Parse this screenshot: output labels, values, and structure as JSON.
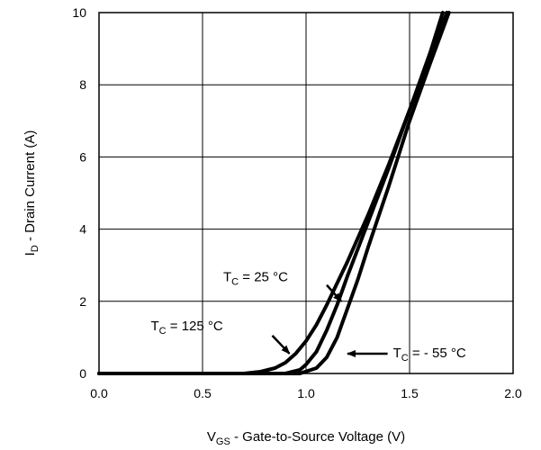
{
  "chart_data": {
    "type": "line",
    "title": "",
    "xlabel": {
      "main": "V",
      "sub": "GS",
      "rest": " - Gate-to-Source Voltage (V)"
    },
    "ylabel": {
      "main": "I",
      "sub": "D",
      "rest": " - Drain Current (A)"
    },
    "xlim": [
      0,
      2.0
    ],
    "ylim": [
      0,
      10
    ],
    "x_ticks": [
      "0.0",
      "0.5",
      "1.0",
      "1.5",
      "2.0"
    ],
    "y_ticks": [
      "0",
      "2",
      "4",
      "6",
      "8",
      "10"
    ],
    "grid": true,
    "series": [
      {
        "name": {
          "main": "T",
          "sub": "C",
          "rest": " = 125 °C"
        },
        "x": [
          0.0,
          0.7,
          0.78,
          0.85,
          0.9,
          0.95,
          1.0,
          1.05,
          1.1,
          1.2,
          1.3,
          1.4,
          1.5,
          1.6,
          1.66
        ],
        "y": [
          0.0,
          0.0,
          0.05,
          0.15,
          0.3,
          0.55,
          0.9,
          1.35,
          1.9,
          3.1,
          4.4,
          5.8,
          7.3,
          8.9,
          10
        ]
      },
      {
        "name": {
          "main": "T",
          "sub": "C",
          "rest": " = 25 °C"
        },
        "x": [
          0.0,
          0.9,
          0.97,
          1.0,
          1.05,
          1.1,
          1.15,
          1.2,
          1.3,
          1.4,
          1.5,
          1.6,
          1.68
        ],
        "y": [
          0.0,
          0.0,
          0.1,
          0.25,
          0.6,
          1.2,
          1.9,
          2.7,
          4.2,
          5.7,
          7.3,
          8.8,
          10
        ]
      },
      {
        "name": {
          "main": "T",
          "sub": "C",
          "rest": " = - 55 °C"
        },
        "x": [
          0.0,
          0.97,
          1.05,
          1.1,
          1.15,
          1.2,
          1.25,
          1.3,
          1.4,
          1.5,
          1.6,
          1.69
        ],
        "y": [
          0.0,
          0.0,
          0.15,
          0.45,
          1.0,
          1.8,
          2.6,
          3.5,
          5.2,
          7.0,
          8.6,
          10
        ]
      }
    ],
    "annotations": [
      {
        "series": 0,
        "text_x": 0.25,
        "text_y": 1.2,
        "arrow_to": [
          0.92,
          0.55
        ]
      },
      {
        "series": 1,
        "text_x": 0.6,
        "text_y": 2.55,
        "arrow_to": [
          1.17,
          2.0
        ]
      },
      {
        "series": 2,
        "text_x": 1.42,
        "text_y": 0.45,
        "arrow_to": [
          1.2,
          0.55
        ]
      }
    ]
  }
}
